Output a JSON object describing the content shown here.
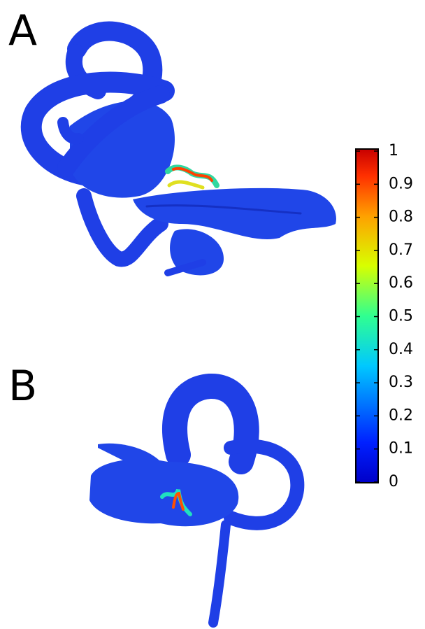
{
  "panels": [
    {
      "label": "A"
    },
    {
      "label": "B"
    }
  ],
  "colorbar": {
    "lim": [
      0,
      1
    ],
    "ticks": [
      0,
      0.1,
      0.2,
      0.3,
      0.4,
      0.5,
      0.6,
      0.7,
      0.8,
      0.9,
      1
    ]
  }
}
